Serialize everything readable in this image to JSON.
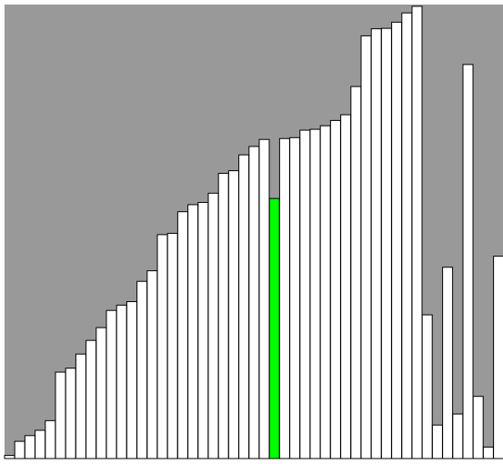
{
  "colors": {
    "background": "#999999",
    "bar_fill": "#ffffff",
    "bar_stroke": "#000000",
    "highlight_fill": "#00ff00"
  },
  "chart_data": {
    "type": "bar",
    "values": [
      0.7,
      3.9,
      5.2,
      6.4,
      8.6,
      19.6,
      20.5,
      23.7,
      26.8,
      29.7,
      33.6,
      34.8,
      35.6,
      40.2,
      42.6,
      50.8,
      51.1,
      56.0,
      57.6,
      58.1,
      60.2,
      64.7,
      65.3,
      68.9,
      70.8,
      72.4,
      59.0,
      72.6,
      72.8,
      74.5,
      74.7,
      75.5,
      76.7,
      78.0,
      84.4,
      95.9,
      97.5,
      97.6,
      99.0,
      101.1,
      102.6,
      32.6,
      7.6,
      43.4,
      10.1,
      89.4,
      14.1,
      2.6,
      45.9
    ],
    "highlight_index": 26,
    "ylim": [
      0,
      103
    ]
  }
}
